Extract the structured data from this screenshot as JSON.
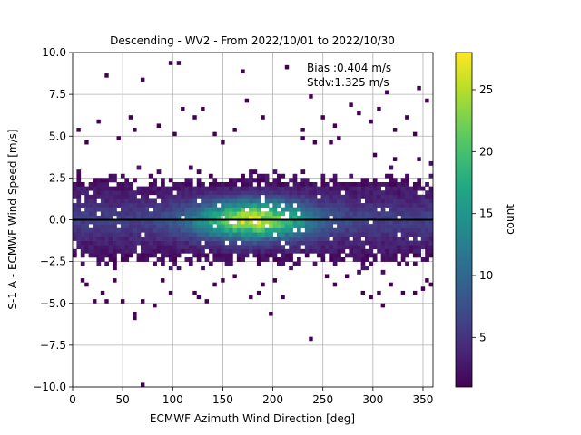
{
  "chart_data": {
    "type": "heatmap",
    "title": "Descending - WV2 - From 2022/10/01 to 2022/10/30",
    "xlabel": "ECMWF Azimuth Wind Direction [deg]",
    "ylabel": "S-1 A - ECMWF Wind Speed [m/s]",
    "xlim": [
      0,
      360
    ],
    "ylim": [
      -10,
      10
    ],
    "x_ticks": [
      0,
      50,
      100,
      150,
      200,
      250,
      300,
      350
    ],
    "y_ticks": [
      -10.0,
      -7.5,
      -5.0,
      -2.5,
      0.0,
      2.5,
      5.0,
      7.5,
      10.0
    ],
    "x_tick_labels": [
      "0",
      "50",
      "100",
      "150",
      "200",
      "250",
      "300",
      "350"
    ],
    "y_tick_labels": [
      "−10.0",
      "−7.5",
      "−5.0",
      "−2.5",
      "0.0",
      "2.5",
      "5.0",
      "7.5",
      "10.0"
    ],
    "grid": true,
    "colormap": "viridis",
    "colorbar": {
      "label": "count",
      "range": [
        1,
        28
      ],
      "ticks": [
        5,
        10,
        15,
        20,
        25
      ],
      "tick_labels": [
        "5",
        "10",
        "15",
        "20",
        "25"
      ]
    },
    "bin_size": {
      "x": 4,
      "y": 0.25
    },
    "annotations": [
      "Bias :0.404 m/s",
      "Stdv:1.325 m/s"
    ],
    "reference_line": {
      "y": 0,
      "color": "#000000"
    },
    "density_model": {
      "core_y_range": [
        -2.0,
        2.0
      ],
      "peak_x": 180,
      "peak_y": 0,
      "peak_count": 28
    },
    "outliers": [
      [
        35,
        8.7
      ],
      [
        70,
        8.3
      ],
      [
        96,
        9.3
      ],
      [
        104,
        9.3
      ],
      [
        168,
        8.9
      ],
      [
        213,
        9.2
      ],
      [
        173,
        7.1
      ],
      [
        189,
        6.2
      ],
      [
        110,
        6.6
      ],
      [
        120,
        6.0
      ],
      [
        130,
        6.5
      ],
      [
        58,
        6.2
      ],
      [
        24,
        5.9
      ],
      [
        45,
        4.8
      ],
      [
        63,
        5.3
      ],
      [
        85,
        5.5
      ],
      [
        100,
        5.1
      ],
      [
        140,
        5.2
      ],
      [
        150,
        4.7
      ],
      [
        160,
        5.4
      ],
      [
        236,
        7.3
      ],
      [
        248,
        6.1
      ],
      [
        262,
        5.6
      ],
      [
        267,
        4.8
      ],
      [
        278,
        6.9
      ],
      [
        286,
        6.3
      ],
      [
        298,
        5.9
      ],
      [
        306,
        6.6
      ],
      [
        314,
        7.6
      ],
      [
        322,
        5.3
      ],
      [
        334,
        6.0
      ],
      [
        346,
        7.9
      ],
      [
        355,
        7.2
      ],
      [
        340,
        5.0
      ],
      [
        12,
        4.7
      ],
      [
        6,
        5.3
      ],
      [
        230,
        4.9
      ],
      [
        20,
        -4.8
      ],
      [
        28,
        -4.3
      ],
      [
        35,
        -5.0
      ],
      [
        42,
        -3.7
      ],
      [
        50,
        -4.8
      ],
      [
        62,
        -5.7
      ],
      [
        62,
        -6.0
      ],
      [
        68,
        -4.8
      ],
      [
        81,
        -5.2
      ],
      [
        90,
        -3.6
      ],
      [
        97,
        -4.5
      ],
      [
        120,
        -4.3
      ],
      [
        125,
        -4.6
      ],
      [
        135,
        -4.9
      ],
      [
        140,
        -4.0
      ],
      [
        150,
        -3.6
      ],
      [
        163,
        -3.4
      ],
      [
        178,
        -4.6
      ],
      [
        186,
        -4.3
      ],
      [
        190,
        -4.0
      ],
      [
        200,
        -3.6
      ],
      [
        198,
        -5.7
      ],
      [
        211,
        -4.6
      ],
      [
        237,
        -7.1
      ],
      [
        275,
        -3.4
      ],
      [
        289,
        -4.5
      ],
      [
        296,
        -4.7
      ],
      [
        304,
        -4.5
      ],
      [
        311,
        -5.2
      ],
      [
        319,
        -4.0
      ],
      [
        330,
        -4.3
      ],
      [
        341,
        -4.3
      ],
      [
        348,
        -4.2
      ],
      [
        352,
        -3.7
      ],
      [
        356,
        -3.9
      ],
      [
        70,
        -10.0
      ],
      [
        8,
        -3.6
      ],
      [
        15,
        -3.8
      ],
      [
        255,
        -3.5
      ],
      [
        262,
        -3.9
      ],
      [
        345,
        3.5
      ],
      [
        230,
        5.3
      ],
      [
        240,
        4.6
      ],
      [
        258,
        4.5
      ],
      [
        300,
        3.8
      ],
      [
        320,
        3.6
      ]
    ]
  }
}
